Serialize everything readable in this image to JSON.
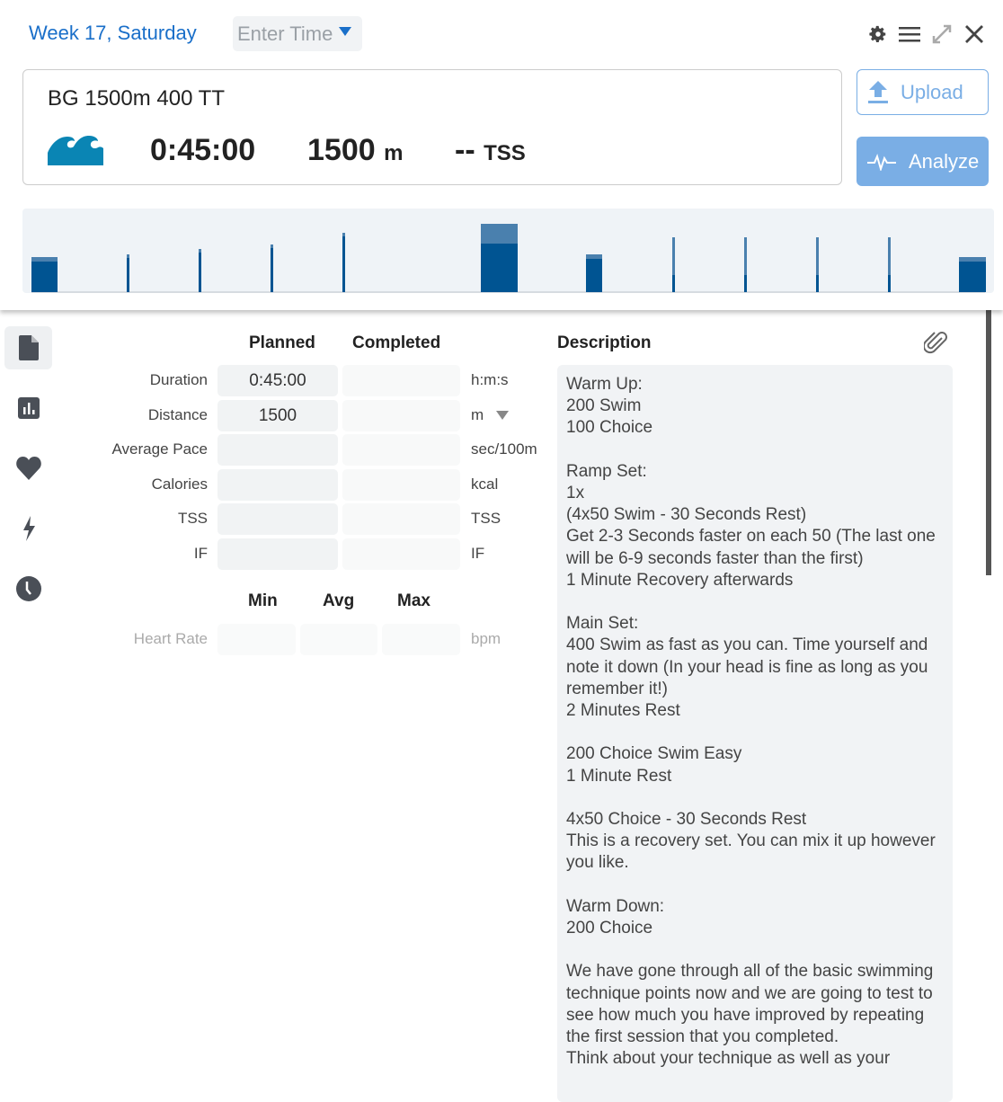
{
  "header": {
    "week_label": "Week 17, Saturday",
    "time_placeholder": "Enter Time"
  },
  "toolbar_icons": [
    "gear-icon",
    "menu-icon",
    "expand-icon",
    "close-icon"
  ],
  "workout": {
    "title": "BG 1500m 400 TT",
    "sport_icon": "swim-wave-icon",
    "duration": "0:45:00",
    "distance": "1500",
    "distance_unit": "m",
    "tss": "--",
    "tss_unit": "TSS"
  },
  "buttons": {
    "upload": "Upload",
    "analyze": "Analyze"
  },
  "colors": {
    "accent": "#1a6fc9",
    "button": "#7aaee5",
    "bar_dark": "#005492",
    "bar_light": "#4a80ae",
    "sport": "#0a85b4"
  },
  "sidebar": [
    "file-icon",
    "chart-icon",
    "heart-icon",
    "bolt-icon",
    "clock-icon"
  ],
  "form": {
    "planned_header": "Planned",
    "completed_header": "Completed",
    "rows": [
      {
        "label": "Duration",
        "planned": "0:45:00",
        "completed": "",
        "unit": "h:m:s"
      },
      {
        "label": "Distance",
        "planned": "1500",
        "completed": "",
        "unit": "m"
      },
      {
        "label": "Average Pace",
        "planned": "",
        "completed": "",
        "unit": "sec/100m"
      },
      {
        "label": "Calories",
        "planned": "",
        "completed": "",
        "unit": "kcal"
      },
      {
        "label": "TSS",
        "planned": "",
        "completed": "",
        "unit": "TSS"
      },
      {
        "label": "IF",
        "planned": "",
        "completed": "",
        "unit": "IF"
      }
    ],
    "min_header": "Min",
    "avg_header": "Avg",
    "max_header": "Max",
    "heart_rate": {
      "label": "Heart Rate",
      "min": "",
      "avg": "",
      "max": "",
      "unit": "bpm"
    }
  },
  "description": {
    "header": "Description",
    "text": "Warm Up:\n200 Swim\n100 Choice\n\nRamp Set:\n1x\n(4x50 Swim - 30 Seconds Rest)\nGet 2-3 Seconds faster on each 50 (The last one will be 6-9 seconds faster than the first)\n1 Minute Recovery afterwards\n\nMain Set:\n400 Swim as fast as you can. Time yourself and note it down (In your head is fine as long as you remember it!)\n2 Minutes Rest\n\n200 Choice Swim Easy\n1 Minute Rest\n\n4x50 Choice - 30 Seconds Rest\nThis is a recovery set. You can mix it up however you like.\n\nWarm Down:\n200 Choice\n\nWe have gone through all of the basic swimming technique points now and we are going to test to see how much you have improved by repeating the first session that you completed.\nThink about your technique as well as your"
  }
}
